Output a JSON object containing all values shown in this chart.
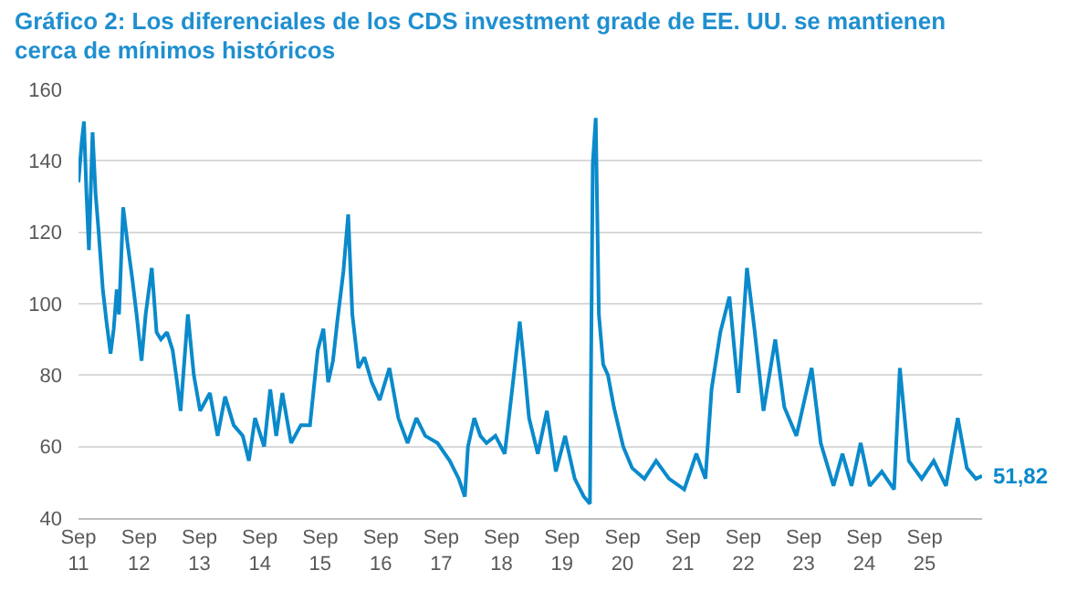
{
  "chart_data": {
    "type": "line",
    "title": "Gráfico 2: Los diferenciales de los CDS investment grade de EE. UU. se mantienen cerca de mínimos históricos",
    "x": [
      "2011-09-01",
      "2011-09-20",
      "2011-10-04",
      "2011-10-19",
      "2011-11-03",
      "2011-11-25",
      "2011-12-13",
      "2012-01-01",
      "2012-01-26",
      "2012-02-17",
      "2012-03-13",
      "2012-04-01",
      "2012-04-19",
      "2012-05-03",
      "2012-05-28",
      "2012-06-23",
      "2012-07-22",
      "2012-08-17",
      "2012-09-16",
      "2012-10-11",
      "2012-11-17",
      "2012-12-16",
      "2013-01-11",
      "2013-02-17",
      "2013-03-23",
      "2013-04-19",
      "2013-05-10",
      "2013-06-23",
      "2013-07-29",
      "2013-09-05",
      "2013-11-03",
      "2013-12-20",
      "2014-02-03",
      "2014-03-27",
      "2014-05-21",
      "2014-06-27",
      "2014-08-03",
      "2014-09-27",
      "2014-11-03",
      "2014-12-09",
      "2015-01-15",
      "2015-03-09",
      "2015-05-07",
      "2015-07-01",
      "2015-08-17",
      "2015-09-20",
      "2015-10-19",
      "2015-11-17",
      "2015-12-13",
      "2016-01-19",
      "2016-02-17",
      "2016-03-13",
      "2016-04-19",
      "2016-05-25",
      "2016-07-08",
      "2016-08-25",
      "2016-10-23",
      "2016-12-16",
      "2017-02-10",
      "2017-04-04",
      "2017-05-28",
      "2017-08-10",
      "2017-10-23",
      "2017-12-16",
      "2018-01-22",
      "2018-02-10",
      "2018-03-20",
      "2018-04-26",
      "2018-06-02",
      "2018-07-26",
      "2018-09-20",
      "2018-11-14",
      "2018-12-20",
      "2019-01-15",
      "2019-02-14",
      "2019-04-08",
      "2019-06-02",
      "2019-07-26",
      "2019-09-20",
      "2019-11-17",
      "2020-01-11",
      "2020-02-17",
      "2020-03-05",
      "2020-03-23",
      "2020-04-11",
      "2020-05-07",
      "2020-06-05",
      "2020-07-11",
      "2020-09-05",
      "2020-10-29",
      "2021-01-11",
      "2021-03-23",
      "2021-06-09",
      "2021-09-09",
      "2021-11-21",
      "2022-01-15",
      "2022-02-21",
      "2022-04-15",
      "2022-06-09",
      "2022-08-03",
      "2022-09-23",
      "2022-11-07",
      "2023-01-01",
      "2023-03-13",
      "2023-05-07",
      "2023-07-19",
      "2023-10-19",
      "2023-12-13",
      "2024-02-28",
      "2024-04-22",
      "2024-06-16",
      "2024-08-10",
      "2024-10-04",
      "2024-12-16",
      "2025-02-28",
      "2025-04-04",
      "2025-05-28",
      "2025-08-14",
      "2025-10-26",
      "2026-01-08",
      "2026-03-20",
      "2026-05-14",
      "2026-07-08",
      "2026-08-14"
    ],
    "series": [
      {
        "color": "#0a8acb",
        "values": [
          134,
          145,
          151,
          131,
          115,
          148,
          131,
          120,
          104,
          95,
          86,
          93,
          104,
          97,
          127,
          117,
          107,
          97,
          84,
          97,
          110,
          92,
          90,
          92,
          87,
          78,
          70,
          97,
          80,
          70,
          75,
          63,
          74,
          66,
          63,
          56,
          68,
          60,
          76,
          63,
          75,
          61,
          66,
          66,
          87,
          93,
          78,
          84,
          95,
          109,
          125,
          97,
          82,
          85,
          78,
          73,
          82,
          68,
          61,
          68,
          63,
          61,
          56,
          51,
          46,
          60,
          68,
          63,
          61,
          63,
          58,
          80,
          95,
          83,
          68,
          58,
          70,
          53,
          63,
          51,
          46,
          44,
          139,
          152,
          97,
          83,
          80,
          71,
          60,
          54,
          51,
          56,
          51,
          48,
          58,
          51,
          76,
          92,
          102,
          75,
          110,
          93,
          70,
          90,
          71,
          63,
          82,
          61,
          49,
          58,
          49,
          61,
          49,
          53,
          48,
          82,
          56,
          51,
          56,
          49,
          68,
          54,
          51,
          51.82
        ]
      }
    ],
    "xlim": [
      "2011-09-01",
      "2026-08-14"
    ],
    "xticks": [
      {
        "value": "2011-09-01",
        "label": "Sep 11"
      },
      {
        "value": "2012-09-01",
        "label": "Sep 12"
      },
      {
        "value": "2013-09-01",
        "label": "Sep 13"
      },
      {
        "value": "2014-09-01",
        "label": "Sep 14"
      },
      {
        "value": "2015-09-01",
        "label": "Sep 15"
      },
      {
        "value": "2016-09-01",
        "label": "Sep 16"
      },
      {
        "value": "2017-09-01",
        "label": "Sep 17"
      },
      {
        "value": "2018-09-01",
        "label": "Sep 18"
      },
      {
        "value": "2019-09-01",
        "label": "Sep 19"
      },
      {
        "value": "2020-09-01",
        "label": "Sep 20"
      },
      {
        "value": "2021-09-01",
        "label": "Sep 21"
      },
      {
        "value": "2022-09-01",
        "label": "Sep 22"
      },
      {
        "value": "2023-09-01",
        "label": "Sep 23"
      },
      {
        "value": "2024-09-01",
        "label": "Sep 24"
      },
      {
        "value": "2025-09-01",
        "label": "Sep 25"
      }
    ],
    "ylim": [
      40,
      160
    ],
    "yticks": [
      40,
      60,
      80,
      100,
      120,
      140,
      160
    ],
    "grid": "y",
    "annotations": [
      {
        "text": "51,82",
        "x": "2026-08-14",
        "y": 51.82
      }
    ]
  }
}
